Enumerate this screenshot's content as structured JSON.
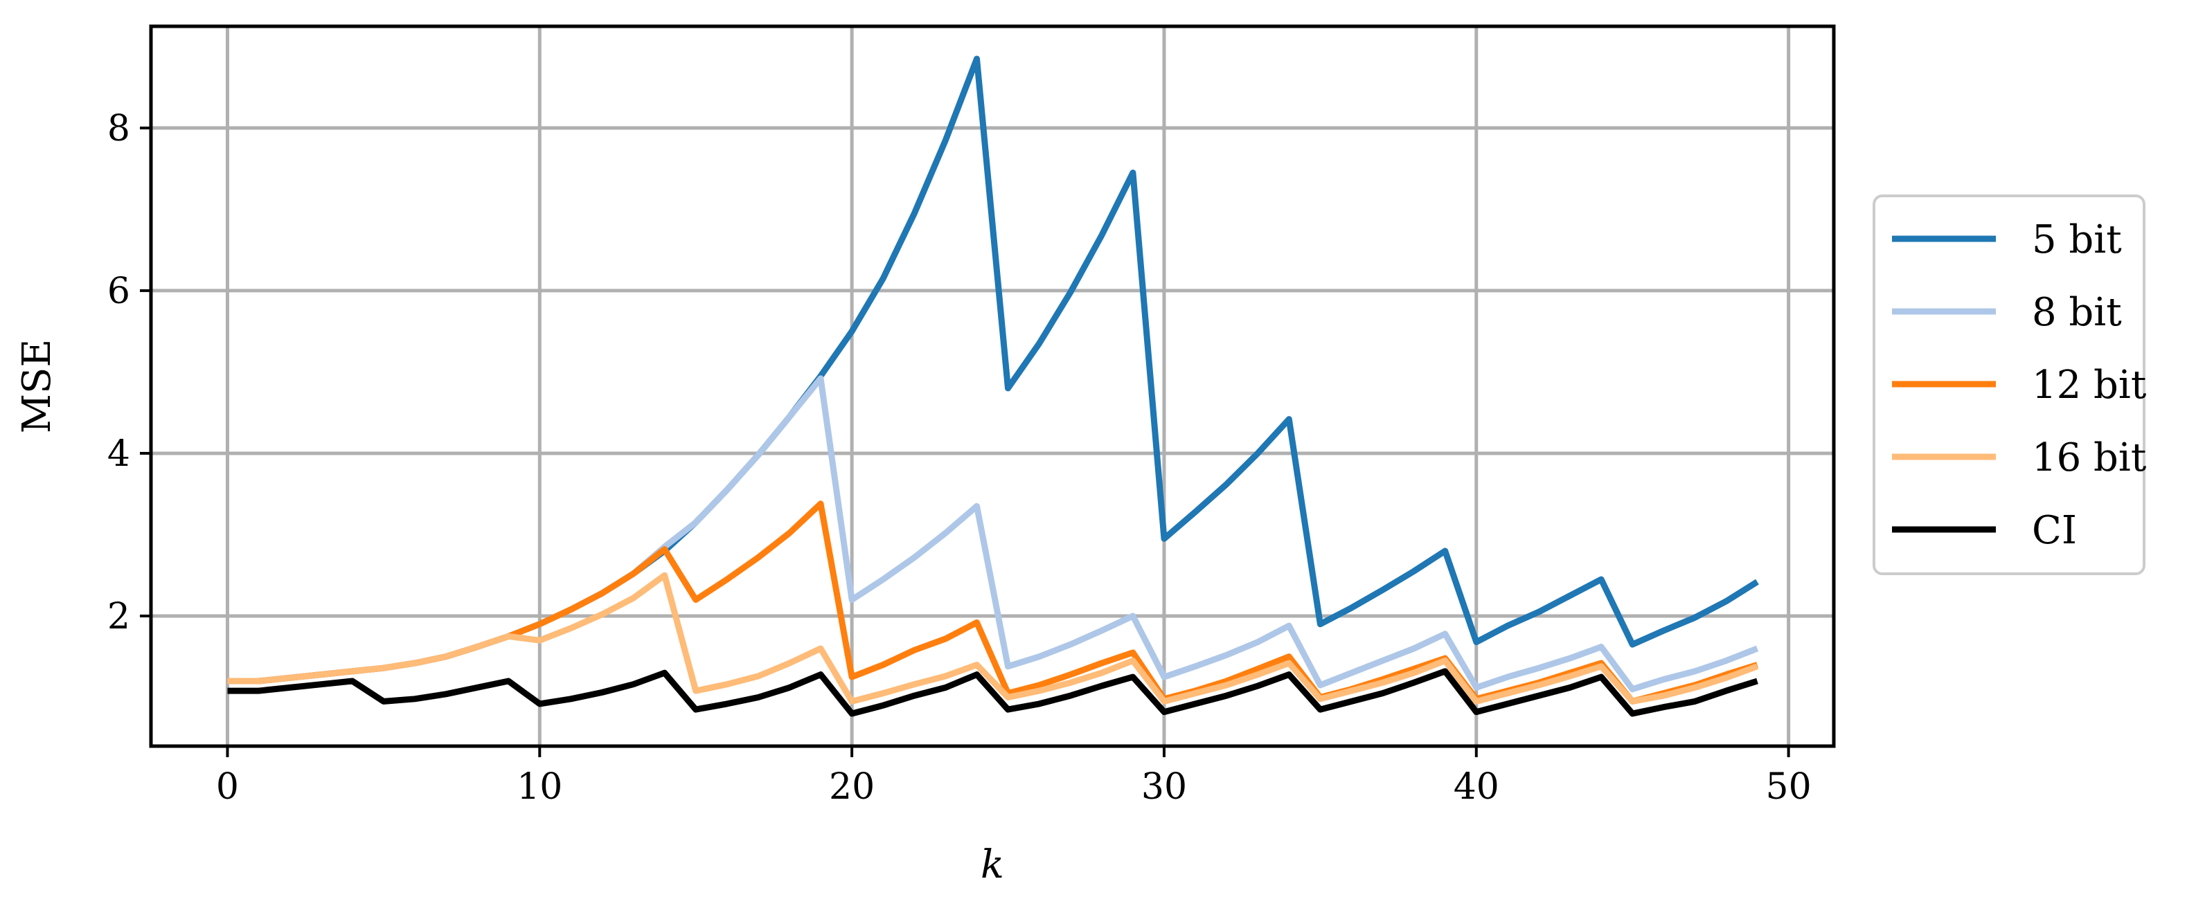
{
  "chart_data": {
    "type": "line",
    "title": "",
    "xlabel": "k",
    "ylabel": "MSE",
    "xlim": [
      -2.45,
      51.45
    ],
    "ylim": [
      0.4,
      9.25
    ],
    "xticks": [
      0,
      10,
      20,
      30,
      40,
      50
    ],
    "yticks": [
      2,
      4,
      6,
      8
    ],
    "grid": true,
    "legend_position": "outside-right",
    "x": [
      0,
      1,
      2,
      3,
      4,
      5,
      6,
      7,
      8,
      9,
      10,
      11,
      12,
      13,
      14,
      15,
      16,
      17,
      18,
      19,
      20,
      21,
      22,
      23,
      24,
      25,
      26,
      27,
      28,
      29,
      30,
      31,
      32,
      33,
      34,
      35,
      36,
      37,
      38,
      39,
      40,
      41,
      42,
      43,
      44,
      45,
      46,
      47,
      48,
      49
    ],
    "series": [
      {
        "name": "5 bit",
        "color": "#1f77b4",
        "values": [
          1.2,
          1.2,
          1.24,
          1.28,
          1.32,
          1.36,
          1.42,
          1.5,
          1.62,
          1.75,
          1.9,
          2.08,
          2.28,
          2.52,
          2.8,
          3.15,
          3.55,
          3.98,
          4.45,
          4.95,
          5.5,
          6.15,
          6.95,
          7.85,
          8.85,
          4.8,
          5.35,
          5.98,
          6.68,
          7.45,
          2.95,
          3.28,
          3.62,
          4.0,
          4.42,
          1.9,
          2.1,
          2.32,
          2.55,
          2.8,
          1.68,
          1.88,
          2.05,
          2.25,
          2.45,
          1.65,
          1.82,
          1.98,
          2.18,
          2.42
        ]
      },
      {
        "name": "8 bit",
        "color": "#aec7e8",
        "values": [
          1.2,
          1.2,
          1.24,
          1.28,
          1.32,
          1.36,
          1.42,
          1.5,
          1.62,
          1.75,
          1.9,
          2.08,
          2.28,
          2.52,
          2.85,
          3.15,
          3.55,
          3.98,
          4.45,
          4.92,
          2.2,
          2.45,
          2.72,
          3.02,
          3.35,
          1.38,
          1.5,
          1.65,
          1.82,
          2.0,
          1.25,
          1.38,
          1.52,
          1.68,
          1.88,
          1.15,
          1.3,
          1.45,
          1.6,
          1.78,
          1.12,
          1.25,
          1.36,
          1.48,
          1.62,
          1.1,
          1.22,
          1.32,
          1.45,
          1.6
        ]
      },
      {
        "name": "12 bit",
        "color": "#ff7f0e",
        "values": [
          1.2,
          1.2,
          1.24,
          1.28,
          1.32,
          1.36,
          1.42,
          1.5,
          1.62,
          1.75,
          1.9,
          2.08,
          2.28,
          2.52,
          2.82,
          2.2,
          2.45,
          2.72,
          3.02,
          3.38,
          1.25,
          1.4,
          1.58,
          1.72,
          1.92,
          1.05,
          1.15,
          1.28,
          1.42,
          1.55,
          0.98,
          1.08,
          1.2,
          1.35,
          1.5,
          1.0,
          1.1,
          1.22,
          1.35,
          1.48,
          0.98,
          1.08,
          1.18,
          1.3,
          1.42,
          0.95,
          1.05,
          1.15,
          1.28,
          1.4
        ]
      },
      {
        "name": "16 bit",
        "color": "#ffbb78",
        "values": [
          1.2,
          1.2,
          1.24,
          1.28,
          1.32,
          1.36,
          1.42,
          1.5,
          1.62,
          1.75,
          1.7,
          1.85,
          2.02,
          2.22,
          2.5,
          1.08,
          1.16,
          1.26,
          1.42,
          1.6,
          0.95,
          1.05,
          1.16,
          1.26,
          1.4,
          1.0,
          1.08,
          1.18,
          1.3,
          1.45,
          0.95,
          1.05,
          1.15,
          1.28,
          1.42,
          0.98,
          1.08,
          1.18,
          1.3,
          1.45,
          0.95,
          1.05,
          1.15,
          1.26,
          1.38,
          0.95,
          1.02,
          1.12,
          1.24,
          1.38
        ]
      },
      {
        "name": "CI",
        "color": "#000000",
        "values": [
          1.08,
          1.08,
          1.12,
          1.16,
          1.2,
          0.95,
          0.98,
          1.04,
          1.12,
          1.2,
          0.92,
          0.98,
          1.06,
          1.16,
          1.3,
          0.85,
          0.92,
          1.0,
          1.12,
          1.28,
          0.8,
          0.9,
          1.02,
          1.12,
          1.28,
          0.85,
          0.92,
          1.02,
          1.14,
          1.25,
          0.82,
          0.92,
          1.02,
          1.14,
          1.28,
          0.85,
          0.95,
          1.05,
          1.18,
          1.32,
          0.82,
          0.92,
          1.02,
          1.12,
          1.25,
          0.8,
          0.88,
          0.95,
          1.08,
          1.2
        ]
      }
    ]
  }
}
